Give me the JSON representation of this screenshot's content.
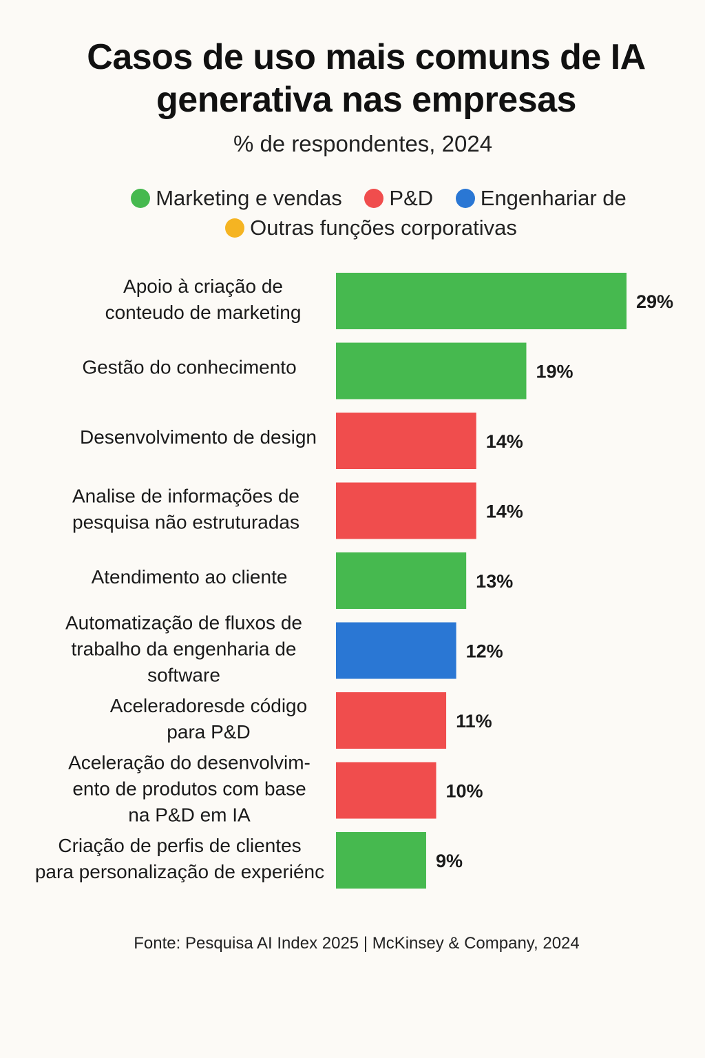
{
  "chart_data": {
    "type": "bar",
    "orientation": "horizontal",
    "title": [
      "Casos de uso mais comuns de IA",
      "generativa nas empresas"
    ],
    "subtitle": "% de respondentes, 2024",
    "legend": [
      {
        "name": "Marketing e vendas",
        "color": "#46b94f"
      },
      {
        "name": "P&D",
        "color": "#f04d4d"
      },
      {
        "name": "Engenhariar de",
        "color": "#2a77d4"
      },
      {
        "name": "Outras funções corporativas",
        "color": "#f5b422"
      }
    ],
    "categories": [
      [
        "Apoio à criação de",
        "conteudo de marketing"
      ],
      [
        "Gestão do conhecimento"
      ],
      [
        "Desenvolvimento de design"
      ],
      [
        "Analise de informações de",
        "pesquisa não estruturadas"
      ],
      [
        "Atendimento ao cliente"
      ],
      [
        "Automatização de fluxos de",
        "trabalho da engenharia de",
        "software"
      ],
      [
        "Aceleradoresde código",
        "para P&D"
      ],
      [
        "Aceleração do desenvolvim-",
        "ento de produtos com base",
        "na P&D em IA"
      ],
      [
        "Criação de perfis de clientes",
        "para personalização de experiénc"
      ]
    ],
    "values": [
      29,
      19,
      14,
      14,
      13,
      12,
      11,
      10,
      9
    ],
    "value_labels": [
      "29%",
      "19%",
      "14%",
      "14%",
      "13%",
      "12%",
      "11%",
      "10%",
      "9%"
    ],
    "groups": [
      "Marketing e vendas",
      "Marketing e vendas",
      "P&D",
      "P&D",
      "Marketing e vendas",
      "Engenhariar de",
      "P&D",
      "P&D",
      "Marketing e vendas"
    ],
    "colors": [
      "#46b94f",
      "#46b94f",
      "#f04d4d",
      "#f04d4d",
      "#46b94f",
      "#2a77d4",
      "#f04d4d",
      "#f04d4d",
      "#46b94f"
    ],
    "xlim": [
      0,
      29
    ],
    "grid": false,
    "legend_position": "top"
  },
  "footer": "Fonte: Pesquisa AI Index  2025 | McKinsey & Company, 2024"
}
